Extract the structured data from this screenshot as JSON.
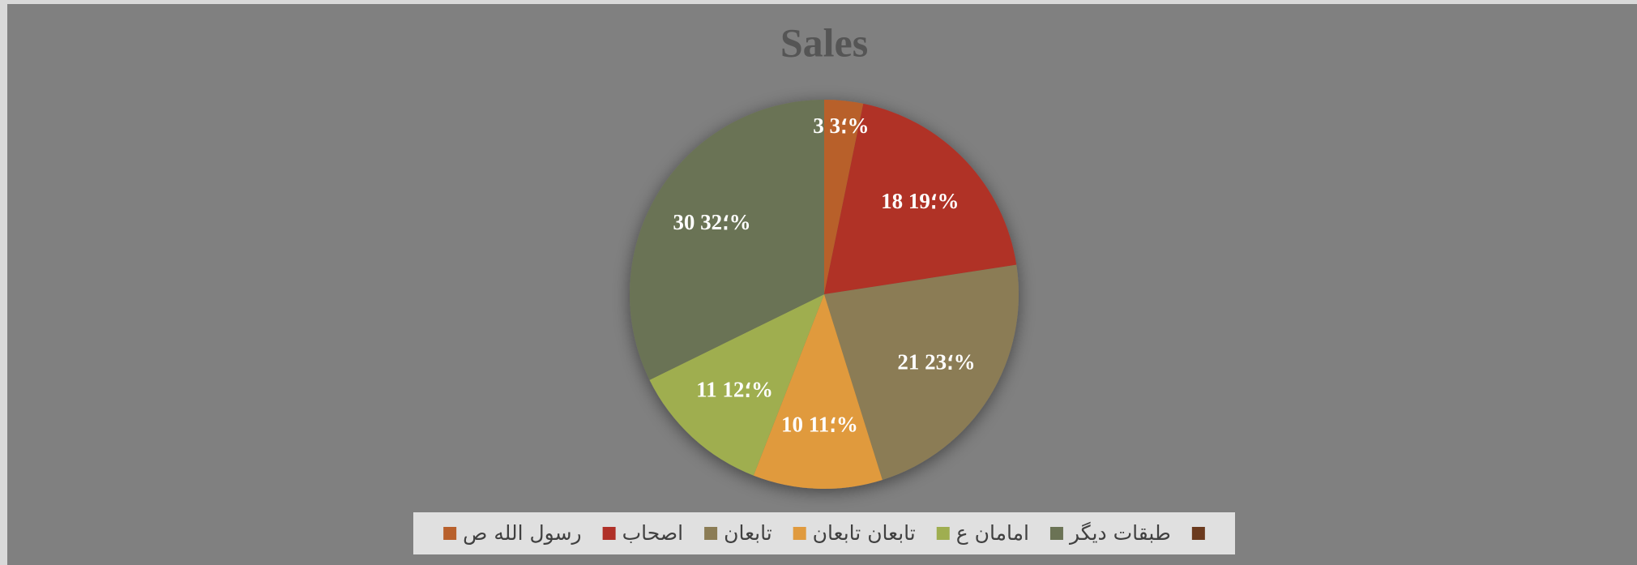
{
  "chart_data": {
    "type": "pie",
    "title": "Sales",
    "categories": [
      "رسول الله ص",
      "اصحاب",
      "تابعان",
      "تابعان تابعان",
      "امامان ع",
      "طبقات دیگر",
      null
    ],
    "values": [
      3,
      18,
      21,
      10,
      11,
      30,
      0
    ],
    "value_labels": [
      "3 ؛3%",
      "18 ؛19%",
      "21 ؛23%",
      "10 ؛11%",
      "11 ؛12%",
      "30 ؛32%",
      null
    ],
    "colors": [
      "#b8602c",
      "#b03028",
      "#8b7c55",
      "#e09a3e",
      "#9fae50",
      "#6b7355",
      "#6b3a1e"
    ],
    "legend": "bottom"
  }
}
